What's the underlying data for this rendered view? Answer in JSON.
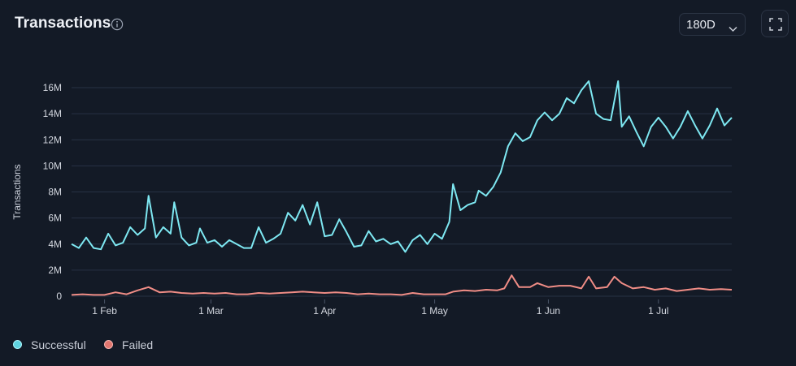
{
  "header": {
    "title": "Transactions",
    "range_value": "180D"
  },
  "colors": {
    "background": "#131a26",
    "successful": "#7ee8f2",
    "failed": "#f08d86",
    "grid": "#273244"
  },
  "chart_data": {
    "type": "line",
    "ylabel": "Transactions",
    "xlabel": "",
    "ylim": [
      0,
      16000000
    ],
    "yticks": [
      0,
      2000000,
      4000000,
      6000000,
      8000000,
      10000000,
      12000000,
      14000000,
      16000000
    ],
    "ytick_labels": [
      "0",
      "2M",
      "4M",
      "6M",
      "8M",
      "10M",
      "12M",
      "14M",
      "16M"
    ],
    "xlim": [
      "2024-01-23",
      "2024-07-21"
    ],
    "xticks": [
      "2024-02-01",
      "2024-03-01",
      "2024-04-01",
      "2024-05-01",
      "2024-06-01",
      "2024-07-01"
    ],
    "xtick_labels": [
      "1 Feb",
      "1 Mar",
      "1 Apr",
      "1 May",
      "1 Jun",
      "1 Jul"
    ],
    "grid": true,
    "legend_position": "bottom-left",
    "series": [
      {
        "name": "Successful",
        "color": "#7ee8f2",
        "points": [
          [
            "2024-01-23",
            4000000
          ],
          [
            "2024-01-25",
            3700000
          ],
          [
            "2024-01-27",
            4500000
          ],
          [
            "2024-01-29",
            3700000
          ],
          [
            "2024-01-31",
            3600000
          ],
          [
            "2024-02-02",
            4800000
          ],
          [
            "2024-02-04",
            3900000
          ],
          [
            "2024-02-06",
            4100000
          ],
          [
            "2024-02-08",
            5300000
          ],
          [
            "2024-02-10",
            4700000
          ],
          [
            "2024-02-12",
            5200000
          ],
          [
            "2024-02-13",
            7700000
          ],
          [
            "2024-02-15",
            4500000
          ],
          [
            "2024-02-17",
            5300000
          ],
          [
            "2024-02-19",
            4800000
          ],
          [
            "2024-02-20",
            7200000
          ],
          [
            "2024-02-22",
            4500000
          ],
          [
            "2024-02-24",
            3900000
          ],
          [
            "2024-02-26",
            4100000
          ],
          [
            "2024-02-27",
            5200000
          ],
          [
            "2024-02-29",
            4100000
          ],
          [
            "2024-03-02",
            4300000
          ],
          [
            "2024-03-04",
            3800000
          ],
          [
            "2024-03-06",
            4300000
          ],
          [
            "2024-03-08",
            4000000
          ],
          [
            "2024-03-10",
            3700000
          ],
          [
            "2024-03-12",
            3700000
          ],
          [
            "2024-03-14",
            5300000
          ],
          [
            "2024-03-16",
            4100000
          ],
          [
            "2024-03-18",
            4400000
          ],
          [
            "2024-03-20",
            4800000
          ],
          [
            "2024-03-22",
            6400000
          ],
          [
            "2024-03-24",
            5800000
          ],
          [
            "2024-03-26",
            7000000
          ],
          [
            "2024-03-28",
            5500000
          ],
          [
            "2024-03-30",
            7200000
          ],
          [
            "2024-04-01",
            4600000
          ],
          [
            "2024-04-03",
            4700000
          ],
          [
            "2024-04-05",
            5900000
          ],
          [
            "2024-04-07",
            4900000
          ],
          [
            "2024-04-09",
            3800000
          ],
          [
            "2024-04-11",
            3900000
          ],
          [
            "2024-04-13",
            5000000
          ],
          [
            "2024-04-15",
            4200000
          ],
          [
            "2024-04-17",
            4400000
          ],
          [
            "2024-04-19",
            4000000
          ],
          [
            "2024-04-21",
            4200000
          ],
          [
            "2024-04-23",
            3400000
          ],
          [
            "2024-04-25",
            4300000
          ],
          [
            "2024-04-27",
            4700000
          ],
          [
            "2024-04-29",
            4000000
          ],
          [
            "2024-05-01",
            4800000
          ],
          [
            "2024-05-03",
            4400000
          ],
          [
            "2024-05-05",
            5700000
          ],
          [
            "2024-05-06",
            8600000
          ],
          [
            "2024-05-08",
            6600000
          ],
          [
            "2024-05-10",
            7000000
          ],
          [
            "2024-05-12",
            7200000
          ],
          [
            "2024-05-13",
            8100000
          ],
          [
            "2024-05-15",
            7700000
          ],
          [
            "2024-05-17",
            8400000
          ],
          [
            "2024-05-19",
            9500000
          ],
          [
            "2024-05-21",
            11500000
          ],
          [
            "2024-05-23",
            12500000
          ],
          [
            "2024-05-25",
            11900000
          ],
          [
            "2024-05-27",
            12200000
          ],
          [
            "2024-05-29",
            13500000
          ],
          [
            "2024-05-31",
            14100000
          ],
          [
            "2024-06-02",
            13500000
          ],
          [
            "2024-06-04",
            14000000
          ],
          [
            "2024-06-06",
            15200000
          ],
          [
            "2024-06-08",
            14800000
          ],
          [
            "2024-06-10",
            15800000
          ],
          [
            "2024-06-12",
            16500000
          ],
          [
            "2024-06-14",
            14000000
          ],
          [
            "2024-06-16",
            13600000
          ],
          [
            "2024-06-18",
            13500000
          ],
          [
            "2024-06-20",
            16500000
          ],
          [
            "2024-06-21",
            13000000
          ],
          [
            "2024-06-23",
            13800000
          ],
          [
            "2024-06-25",
            12600000
          ],
          [
            "2024-06-27",
            11500000
          ],
          [
            "2024-06-29",
            13000000
          ],
          [
            "2024-07-01",
            13700000
          ],
          [
            "2024-07-03",
            13000000
          ],
          [
            "2024-07-05",
            12100000
          ],
          [
            "2024-07-07",
            13000000
          ],
          [
            "2024-07-09",
            14200000
          ],
          [
            "2024-07-11",
            13100000
          ],
          [
            "2024-07-13",
            12100000
          ],
          [
            "2024-07-15",
            13100000
          ],
          [
            "2024-07-17",
            14400000
          ],
          [
            "2024-07-19",
            13100000
          ],
          [
            "2024-07-21",
            13700000
          ]
        ]
      },
      {
        "name": "Failed",
        "color": "#f08d86",
        "points": [
          [
            "2024-01-23",
            100000
          ],
          [
            "2024-01-26",
            150000
          ],
          [
            "2024-01-29",
            100000
          ],
          [
            "2024-02-01",
            100000
          ],
          [
            "2024-02-04",
            300000
          ],
          [
            "2024-02-07",
            150000
          ],
          [
            "2024-02-10",
            450000
          ],
          [
            "2024-02-13",
            700000
          ],
          [
            "2024-02-16",
            300000
          ],
          [
            "2024-02-19",
            350000
          ],
          [
            "2024-02-22",
            250000
          ],
          [
            "2024-02-25",
            200000
          ],
          [
            "2024-02-28",
            250000
          ],
          [
            "2024-03-02",
            200000
          ],
          [
            "2024-03-05",
            250000
          ],
          [
            "2024-03-08",
            150000
          ],
          [
            "2024-03-11",
            150000
          ],
          [
            "2024-03-14",
            250000
          ],
          [
            "2024-03-17",
            200000
          ],
          [
            "2024-03-20",
            250000
          ],
          [
            "2024-03-23",
            300000
          ],
          [
            "2024-03-26",
            350000
          ],
          [
            "2024-03-29",
            300000
          ],
          [
            "2024-04-01",
            250000
          ],
          [
            "2024-04-04",
            300000
          ],
          [
            "2024-04-07",
            250000
          ],
          [
            "2024-04-10",
            150000
          ],
          [
            "2024-04-13",
            200000
          ],
          [
            "2024-04-16",
            150000
          ],
          [
            "2024-04-19",
            150000
          ],
          [
            "2024-04-22",
            100000
          ],
          [
            "2024-04-25",
            250000
          ],
          [
            "2024-04-28",
            150000
          ],
          [
            "2024-05-01",
            150000
          ],
          [
            "2024-05-04",
            150000
          ],
          [
            "2024-05-06",
            350000
          ],
          [
            "2024-05-09",
            450000
          ],
          [
            "2024-05-12",
            400000
          ],
          [
            "2024-05-15",
            500000
          ],
          [
            "2024-05-18",
            450000
          ],
          [
            "2024-05-20",
            600000
          ],
          [
            "2024-05-22",
            1600000
          ],
          [
            "2024-05-24",
            700000
          ],
          [
            "2024-05-27",
            700000
          ],
          [
            "2024-05-29",
            1000000
          ],
          [
            "2024-06-01",
            700000
          ],
          [
            "2024-06-04",
            800000
          ],
          [
            "2024-06-07",
            800000
          ],
          [
            "2024-06-10",
            600000
          ],
          [
            "2024-06-12",
            1500000
          ],
          [
            "2024-06-14",
            600000
          ],
          [
            "2024-06-17",
            700000
          ],
          [
            "2024-06-19",
            1500000
          ],
          [
            "2024-06-21",
            1000000
          ],
          [
            "2024-06-24",
            600000
          ],
          [
            "2024-06-27",
            700000
          ],
          [
            "2024-06-30",
            500000
          ],
          [
            "2024-07-03",
            600000
          ],
          [
            "2024-07-06",
            400000
          ],
          [
            "2024-07-09",
            500000
          ],
          [
            "2024-07-12",
            600000
          ],
          [
            "2024-07-15",
            500000
          ],
          [
            "2024-07-18",
            550000
          ],
          [
            "2024-07-21",
            500000
          ]
        ]
      }
    ]
  }
}
